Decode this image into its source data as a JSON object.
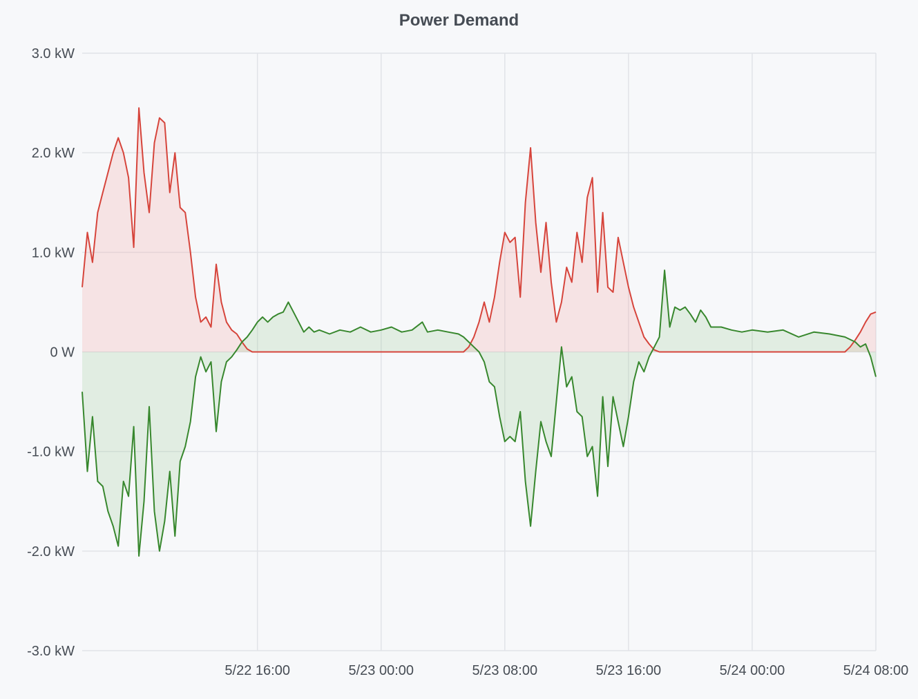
{
  "panel": {
    "title": "Power Demand"
  },
  "chart_data": {
    "type": "area",
    "title": "Power Demand",
    "xlabel": "",
    "ylabel": "",
    "x_range": [
      "2025-05-22 04:40",
      "2025-05-24 08:00"
    ],
    "x_ticks": [
      {
        "label": "5/22 16:00",
        "t": "2025-05-22 16:00"
      },
      {
        "label": "5/23 00:00",
        "t": "2025-05-23 00:00"
      },
      {
        "label": "5/23 08:00",
        "t": "2025-05-23 08:00"
      },
      {
        "label": "5/23 16:00",
        "t": "2025-05-23 16:00"
      },
      {
        "label": "5/24 00:00",
        "t": "2025-05-24 00:00"
      },
      {
        "label": "5/24 08:00",
        "t": "2025-05-24 08:00"
      }
    ],
    "y_unit": "kW",
    "ylim": [
      -3,
      3
    ],
    "y_ticks": [
      {
        "label": "3.0 kW",
        "v": 3
      },
      {
        "label": "2.0 kW",
        "v": 2
      },
      {
        "label": "1.0 kW",
        "v": 1
      },
      {
        "label": "0 W",
        "v": 0
      },
      {
        "label": "-1.0 kW",
        "v": -1
      },
      {
        "label": "-2.0 kW",
        "v": -2
      },
      {
        "label": "-3.0 kW",
        "v": -3
      }
    ],
    "grid": true,
    "legend": "none",
    "series": [
      {
        "color": "#d6443b",
        "fill": "rgba(242,165,165,0.25)",
        "points": [
          [
            "2025-05-22 04:40",
            0.65
          ],
          [
            "2025-05-22 05:00",
            1.2
          ],
          [
            "2025-05-22 05:20",
            0.9
          ],
          [
            "2025-05-22 05:40",
            1.4
          ],
          [
            "2025-05-22 06:00",
            1.6
          ],
          [
            "2025-05-22 06:20",
            1.8
          ],
          [
            "2025-05-22 06:40",
            2.0
          ],
          [
            "2025-05-22 07:00",
            2.15
          ],
          [
            "2025-05-22 07:20",
            2.0
          ],
          [
            "2025-05-22 07:40",
            1.75
          ],
          [
            "2025-05-22 08:00",
            1.05
          ],
          [
            "2025-05-22 08:20",
            2.45
          ],
          [
            "2025-05-22 08:40",
            1.8
          ],
          [
            "2025-05-22 09:00",
            1.4
          ],
          [
            "2025-05-22 09:20",
            2.1
          ],
          [
            "2025-05-22 09:40",
            2.35
          ],
          [
            "2025-05-22 10:00",
            2.3
          ],
          [
            "2025-05-22 10:20",
            1.6
          ],
          [
            "2025-05-22 10:40",
            2.0
          ],
          [
            "2025-05-22 11:00",
            1.45
          ],
          [
            "2025-05-22 11:20",
            1.4
          ],
          [
            "2025-05-22 11:40",
            1.0
          ],
          [
            "2025-05-22 12:00",
            0.55
          ],
          [
            "2025-05-22 12:20",
            0.3
          ],
          [
            "2025-05-22 12:40",
            0.35
          ],
          [
            "2025-05-22 13:00",
            0.25
          ],
          [
            "2025-05-22 13:20",
            0.88
          ],
          [
            "2025-05-22 13:40",
            0.5
          ],
          [
            "2025-05-22 14:00",
            0.3
          ],
          [
            "2025-05-22 14:20",
            0.22
          ],
          [
            "2025-05-22 14:40",
            0.18
          ],
          [
            "2025-05-22 15:00",
            0.1
          ],
          [
            "2025-05-22 15:20",
            0.03
          ],
          [
            "2025-05-22 15:40",
            0.0
          ],
          [
            "2025-05-23 05:20",
            0.0
          ],
          [
            "2025-05-23 05:40",
            0.05
          ],
          [
            "2025-05-23 06:00",
            0.15
          ],
          [
            "2025-05-23 06:20",
            0.3
          ],
          [
            "2025-05-23 06:40",
            0.5
          ],
          [
            "2025-05-23 07:00",
            0.3
          ],
          [
            "2025-05-23 07:20",
            0.55
          ],
          [
            "2025-05-23 07:40",
            0.9
          ],
          [
            "2025-05-23 08:00",
            1.2
          ],
          [
            "2025-05-23 08:20",
            1.1
          ],
          [
            "2025-05-23 08:40",
            1.15
          ],
          [
            "2025-05-23 09:00",
            0.55
          ],
          [
            "2025-05-23 09:20",
            1.5
          ],
          [
            "2025-05-23 09:40",
            2.05
          ],
          [
            "2025-05-23 10:00",
            1.3
          ],
          [
            "2025-05-23 10:20",
            0.8
          ],
          [
            "2025-05-23 10:40",
            1.3
          ],
          [
            "2025-05-23 11:00",
            0.7
          ],
          [
            "2025-05-23 11:20",
            0.3
          ],
          [
            "2025-05-23 11:40",
            0.5
          ],
          [
            "2025-05-23 12:00",
            0.85
          ],
          [
            "2025-05-23 12:20",
            0.7
          ],
          [
            "2025-05-23 12:40",
            1.2
          ],
          [
            "2025-05-23 13:00",
            0.9
          ],
          [
            "2025-05-23 13:20",
            1.55
          ],
          [
            "2025-05-23 13:40",
            1.75
          ],
          [
            "2025-05-23 14:00",
            0.6
          ],
          [
            "2025-05-23 14:20",
            1.4
          ],
          [
            "2025-05-23 14:40",
            0.65
          ],
          [
            "2025-05-23 15:00",
            0.6
          ],
          [
            "2025-05-23 15:20",
            1.15
          ],
          [
            "2025-05-23 15:40",
            0.9
          ],
          [
            "2025-05-23 16:00",
            0.65
          ],
          [
            "2025-05-23 16:20",
            0.45
          ],
          [
            "2025-05-23 16:40",
            0.3
          ],
          [
            "2025-05-23 17:00",
            0.15
          ],
          [
            "2025-05-23 17:20",
            0.08
          ],
          [
            "2025-05-23 17:40",
            0.02
          ],
          [
            "2025-05-23 18:00",
            0.0
          ],
          [
            "2025-05-24 06:00",
            0.0
          ],
          [
            "2025-05-24 06:20",
            0.05
          ],
          [
            "2025-05-24 06:40",
            0.12
          ],
          [
            "2025-05-24 07:00",
            0.2
          ],
          [
            "2025-05-24 07:20",
            0.3
          ],
          [
            "2025-05-24 07:40",
            0.38
          ],
          [
            "2025-05-24 08:00",
            0.4
          ]
        ]
      },
      {
        "color": "#37872d",
        "fill": "rgba(150,200,140,0.22)",
        "points": [
          [
            "2025-05-22 04:40",
            -0.4
          ],
          [
            "2025-05-22 05:00",
            -1.2
          ],
          [
            "2025-05-22 05:20",
            -0.65
          ],
          [
            "2025-05-22 05:40",
            -1.3
          ],
          [
            "2025-05-22 06:00",
            -1.35
          ],
          [
            "2025-05-22 06:20",
            -1.6
          ],
          [
            "2025-05-22 06:40",
            -1.75
          ],
          [
            "2025-05-22 07:00",
            -1.95
          ],
          [
            "2025-05-22 07:20",
            -1.3
          ],
          [
            "2025-05-22 07:40",
            -1.45
          ],
          [
            "2025-05-22 08:00",
            -0.75
          ],
          [
            "2025-05-22 08:20",
            -2.05
          ],
          [
            "2025-05-22 08:40",
            -1.5
          ],
          [
            "2025-05-22 09:00",
            -0.55
          ],
          [
            "2025-05-22 09:20",
            -1.6
          ],
          [
            "2025-05-22 09:40",
            -2.0
          ],
          [
            "2025-05-22 10:00",
            -1.7
          ],
          [
            "2025-05-22 10:20",
            -1.2
          ],
          [
            "2025-05-22 10:40",
            -1.85
          ],
          [
            "2025-05-22 11:00",
            -1.1
          ],
          [
            "2025-05-22 11:20",
            -0.95
          ],
          [
            "2025-05-22 11:40",
            -0.7
          ],
          [
            "2025-05-22 12:00",
            -0.25
          ],
          [
            "2025-05-22 12:20",
            -0.05
          ],
          [
            "2025-05-22 12:40",
            -0.2
          ],
          [
            "2025-05-22 13:00",
            -0.1
          ],
          [
            "2025-05-22 13:20",
            -0.8
          ],
          [
            "2025-05-22 13:40",
            -0.3
          ],
          [
            "2025-05-22 14:00",
            -0.1
          ],
          [
            "2025-05-22 14:20",
            -0.05
          ],
          [
            "2025-05-22 14:40",
            0.02
          ],
          [
            "2025-05-22 15:00",
            0.1
          ],
          [
            "2025-05-22 15:20",
            0.15
          ],
          [
            "2025-05-22 15:40",
            0.22
          ],
          [
            "2025-05-22 16:00",
            0.3
          ],
          [
            "2025-05-22 16:20",
            0.35
          ],
          [
            "2025-05-22 16:40",
            0.3
          ],
          [
            "2025-05-22 17:00",
            0.35
          ],
          [
            "2025-05-22 17:20",
            0.38
          ],
          [
            "2025-05-22 17:40",
            0.4
          ],
          [
            "2025-05-22 18:00",
            0.5
          ],
          [
            "2025-05-22 18:20",
            0.4
          ],
          [
            "2025-05-22 18:40",
            0.3
          ],
          [
            "2025-05-22 19:00",
            0.2
          ],
          [
            "2025-05-22 19:20",
            0.25
          ],
          [
            "2025-05-22 19:40",
            0.2
          ],
          [
            "2025-05-22 20:00",
            0.22
          ],
          [
            "2025-05-22 20:40",
            0.18
          ],
          [
            "2025-05-22 21:20",
            0.22
          ],
          [
            "2025-05-22 22:00",
            0.2
          ],
          [
            "2025-05-22 22:40",
            0.25
          ],
          [
            "2025-05-22 23:20",
            0.2
          ],
          [
            "2025-05-23 00:00",
            0.22
          ],
          [
            "2025-05-23 00:40",
            0.25
          ],
          [
            "2025-05-23 01:20",
            0.2
          ],
          [
            "2025-05-23 02:00",
            0.22
          ],
          [
            "2025-05-23 02:40",
            0.3
          ],
          [
            "2025-05-23 03:00",
            0.2
          ],
          [
            "2025-05-23 03:40",
            0.22
          ],
          [
            "2025-05-23 04:20",
            0.2
          ],
          [
            "2025-05-23 05:00",
            0.18
          ],
          [
            "2025-05-23 05:20",
            0.15
          ],
          [
            "2025-05-23 05:40",
            0.1
          ],
          [
            "2025-05-23 06:00",
            0.05
          ],
          [
            "2025-05-23 06:20",
            0.0
          ],
          [
            "2025-05-23 06:40",
            -0.1
          ],
          [
            "2025-05-23 07:00",
            -0.3
          ],
          [
            "2025-05-23 07:20",
            -0.35
          ],
          [
            "2025-05-23 07:40",
            -0.65
          ],
          [
            "2025-05-23 08:00",
            -0.9
          ],
          [
            "2025-05-23 08:20",
            -0.85
          ],
          [
            "2025-05-23 08:40",
            -0.9
          ],
          [
            "2025-05-23 09:00",
            -0.6
          ],
          [
            "2025-05-23 09:20",
            -1.3
          ],
          [
            "2025-05-23 09:40",
            -1.75
          ],
          [
            "2025-05-23 10:00",
            -1.2
          ],
          [
            "2025-05-23 10:20",
            -0.7
          ],
          [
            "2025-05-23 10:40",
            -0.9
          ],
          [
            "2025-05-23 11:00",
            -1.05
          ],
          [
            "2025-05-23 11:20",
            -0.5
          ],
          [
            "2025-05-23 11:40",
            0.05
          ],
          [
            "2025-05-23 12:00",
            -0.35
          ],
          [
            "2025-05-23 12:20",
            -0.25
          ],
          [
            "2025-05-23 12:40",
            -0.6
          ],
          [
            "2025-05-23 13:00",
            -0.65
          ],
          [
            "2025-05-23 13:20",
            -1.05
          ],
          [
            "2025-05-23 13:40",
            -0.95
          ],
          [
            "2025-05-23 14:00",
            -1.45
          ],
          [
            "2025-05-23 14:20",
            -0.45
          ],
          [
            "2025-05-23 14:40",
            -1.15
          ],
          [
            "2025-05-23 15:00",
            -0.45
          ],
          [
            "2025-05-23 15:20",
            -0.7
          ],
          [
            "2025-05-23 15:40",
            -0.95
          ],
          [
            "2025-05-23 16:00",
            -0.65
          ],
          [
            "2025-05-23 16:20",
            -0.3
          ],
          [
            "2025-05-23 16:40",
            -0.1
          ],
          [
            "2025-05-23 17:00",
            -0.2
          ],
          [
            "2025-05-23 17:20",
            -0.05
          ],
          [
            "2025-05-23 17:40",
            0.05
          ],
          [
            "2025-05-23 18:00",
            0.15
          ],
          [
            "2025-05-23 18:20",
            0.82
          ],
          [
            "2025-05-23 18:40",
            0.25
          ],
          [
            "2025-05-23 19:00",
            0.45
          ],
          [
            "2025-05-23 19:20",
            0.42
          ],
          [
            "2025-05-23 19:40",
            0.45
          ],
          [
            "2025-05-23 20:00",
            0.38
          ],
          [
            "2025-05-23 20:20",
            0.3
          ],
          [
            "2025-05-23 20:40",
            0.42
          ],
          [
            "2025-05-23 21:00",
            0.35
          ],
          [
            "2025-05-23 21:20",
            0.25
          ],
          [
            "2025-05-23 22:00",
            0.25
          ],
          [
            "2025-05-23 22:40",
            0.22
          ],
          [
            "2025-05-23 23:20",
            0.2
          ],
          [
            "2025-05-24 00:00",
            0.22
          ],
          [
            "2025-05-24 01:00",
            0.2
          ],
          [
            "2025-05-24 02:00",
            0.22
          ],
          [
            "2025-05-24 03:00",
            0.15
          ],
          [
            "2025-05-24 04:00",
            0.2
          ],
          [
            "2025-05-24 05:00",
            0.18
          ],
          [
            "2025-05-24 06:00",
            0.15
          ],
          [
            "2025-05-24 06:40",
            0.1
          ],
          [
            "2025-05-24 07:00",
            0.05
          ],
          [
            "2025-05-24 07:20",
            0.08
          ],
          [
            "2025-05-24 07:40",
            -0.05
          ],
          [
            "2025-05-24 08:00",
            -0.25
          ]
        ]
      }
    ]
  }
}
